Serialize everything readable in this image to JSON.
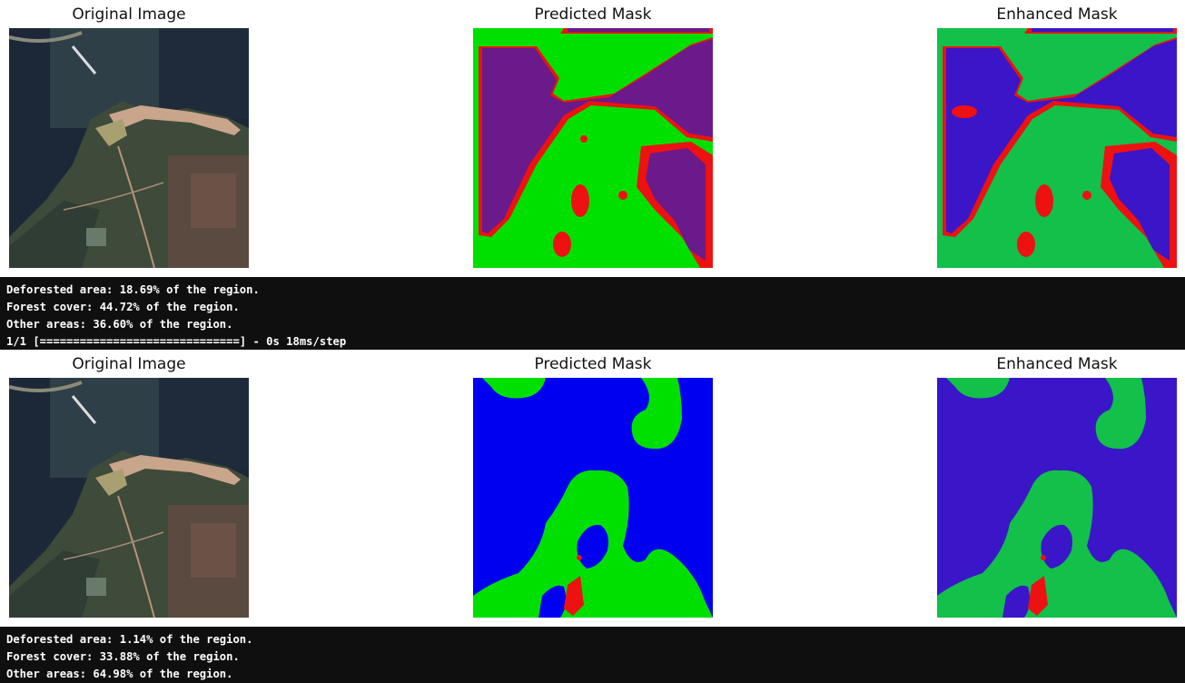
{
  "colors": {
    "forest": "#00e000",
    "water_pred1": "#6a1a8a",
    "water_pred2": "#0000f0",
    "water_enh": "#3a16c8",
    "deforested": "#ee1111",
    "green_enh": "#12c04a",
    "console_bg": "#0f0f0f"
  },
  "runs": [
    {
      "titles": {
        "original": "Original Image",
        "predicted": "Predicted Mask",
        "enhanced": "Enhanced Mask"
      },
      "output": [
        "Deforested area: 18.69% of the region.",
        "Forest cover: 44.72% of the region.",
        "Other areas: 36.60% of the region.",
        "1/1 [==============================] - 0s 18ms/step"
      ]
    },
    {
      "titles": {
        "original": "Original Image",
        "predicted": "Predicted Mask",
        "enhanced": "Enhanced Mask"
      },
      "output": [
        "Deforested area: 1.14% of the region.",
        "Forest cover: 33.88% of the region.",
        "Other areas: 64.98% of the region."
      ]
    }
  ]
}
